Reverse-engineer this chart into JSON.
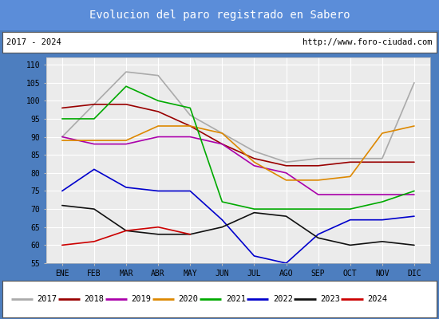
{
  "title": "Evolucion del paro registrado en Sabero",
  "title_bg": "#5b8dd9",
  "title_color": "white",
  "subtitle_left": "2017 - 2024",
  "subtitle_right": "http://www.foro-ciudad.com",
  "months": [
    "ENE",
    "FEB",
    "MAR",
    "ABR",
    "MAY",
    "JUN",
    "JUL",
    "AGO",
    "SEP",
    "OCT",
    "NOV",
    "DIC"
  ],
  "ylim": [
    55,
    112
  ],
  "yticks": [
    55,
    60,
    65,
    70,
    75,
    80,
    85,
    90,
    95,
    100,
    105,
    110
  ],
  "series": {
    "2017": {
      "color": "#aaaaaa",
      "data": [
        90,
        99,
        108,
        107,
        96,
        91,
        86,
        83,
        84,
        84,
        84,
        105
      ]
    },
    "2018": {
      "color": "#990000",
      "data": [
        98,
        99,
        99,
        97,
        93,
        88,
        84,
        82,
        82,
        83,
        83,
        83
      ]
    },
    "2019": {
      "color": "#aa00aa",
      "data": [
        90,
        88,
        88,
        90,
        90,
        88,
        82,
        80,
        74,
        74,
        74,
        74
      ]
    },
    "2020": {
      "color": "#dd8800",
      "data": [
        89,
        89,
        89,
        93,
        93,
        91,
        83,
        78,
        78,
        79,
        91,
        93
      ]
    },
    "2021": {
      "color": "#00aa00",
      "data": [
        95,
        95,
        104,
        100,
        98,
        72,
        70,
        70,
        70,
        70,
        72,
        75
      ]
    },
    "2022": {
      "color": "#0000cc",
      "data": [
        75,
        81,
        76,
        75,
        75,
        67,
        57,
        55,
        63,
        67,
        67,
        68
      ]
    },
    "2023": {
      "color": "#111111",
      "data": [
        71,
        70,
        64,
        63,
        63,
        65,
        69,
        68,
        62,
        60,
        61,
        60
      ]
    },
    "2024": {
      "color": "#cc0000",
      "data": [
        60,
        61,
        64,
        65,
        63,
        null,
        null,
        null,
        null,
        null,
        null,
        null
      ]
    }
  }
}
